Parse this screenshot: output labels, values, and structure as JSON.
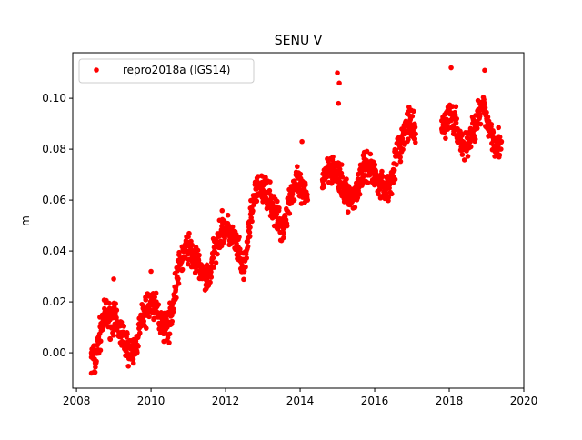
{
  "chart_data": {
    "type": "scatter",
    "title": "SENU V",
    "xlabel": "",
    "ylabel": "m",
    "xlim": [
      2007.9,
      2020.0
    ],
    "ylim": [
      -0.0139,
      0.1179
    ],
    "xticks": [
      2008,
      2010,
      2012,
      2014,
      2016,
      2018,
      2020
    ],
    "xtick_labels": [
      "2008",
      "2010",
      "2012",
      "2014",
      "2016",
      "2018",
      "2020"
    ],
    "yticks": [
      0.0,
      0.02,
      0.04,
      0.06,
      0.08,
      0.1
    ],
    "ytick_labels": [
      "0.00",
      "0.02",
      "0.04",
      "0.06",
      "0.08",
      "0.10"
    ],
    "grid": false,
    "legend": {
      "placement": "top-left",
      "entries": [
        "repro2018a (IGS14)"
      ]
    },
    "series": [
      {
        "name": "repro2018a (IGS14)",
        "color": "#ff0000",
        "marker": "circle",
        "approx_scatter_spread": 0.006,
        "points": [
          [
            2008.4,
            0.0
          ],
          [
            2008.5,
            -0.004
          ],
          [
            2008.6,
            0.005
          ],
          [
            2008.7,
            0.012
          ],
          [
            2008.8,
            0.015
          ],
          [
            2008.9,
            0.013
          ],
          [
            2009.0,
            0.014
          ],
          [
            2009.1,
            0.01
          ],
          [
            2009.2,
            0.008
          ],
          [
            2009.3,
            0.004
          ],
          [
            2009.4,
            0.002
          ],
          [
            2009.5,
            -0.001
          ],
          [
            2009.6,
            0.003
          ],
          [
            2009.7,
            0.01
          ],
          [
            2009.8,
            0.015
          ],
          [
            2009.9,
            0.017
          ],
          [
            2010.0,
            0.02
          ],
          [
            2010.1,
            0.018
          ],
          [
            2010.2,
            0.014
          ],
          [
            2010.3,
            0.012
          ],
          [
            2010.4,
            0.01
          ],
          [
            2010.5,
            0.012
          ],
          [
            2010.6,
            0.02
          ],
          [
            2010.7,
            0.03
          ],
          [
            2010.8,
            0.036
          ],
          [
            2010.9,
            0.04
          ],
          [
            2011.0,
            0.042
          ],
          [
            2011.1,
            0.038
          ],
          [
            2011.2,
            0.036
          ],
          [
            2011.3,
            0.034
          ],
          [
            2011.4,
            0.03
          ],
          [
            2011.5,
            0.029
          ],
          [
            2011.6,
            0.032
          ],
          [
            2011.7,
            0.04
          ],
          [
            2011.8,
            0.046
          ],
          [
            2011.9,
            0.048
          ],
          [
            2012.0,
            0.049
          ],
          [
            2012.1,
            0.047
          ],
          [
            2012.2,
            0.045
          ],
          [
            2012.3,
            0.042
          ],
          [
            2012.4,
            0.036
          ],
          [
            2012.5,
            0.032
          ],
          [
            2012.6,
            0.045
          ],
          [
            2012.7,
            0.057
          ],
          [
            2012.8,
            0.062
          ],
          [
            2012.9,
            0.065
          ],
          [
            2013.0,
            0.064
          ],
          [
            2013.1,
            0.063
          ],
          [
            2013.2,
            0.06
          ],
          [
            2013.3,
            0.056
          ],
          [
            2013.4,
            0.052
          ],
          [
            2013.5,
            0.05
          ],
          [
            2013.6,
            0.052
          ],
          [
            2013.7,
            0.06
          ],
          [
            2013.8,
            0.064
          ],
          [
            2013.9,
            0.066
          ],
          [
            2014.0,
            0.064
          ],
          [
            2014.1,
            0.062
          ],
          [
            2014.2,
            0.06
          ],
          [
            2014.6,
            0.068
          ],
          [
            2014.7,
            0.072
          ],
          [
            2014.8,
            0.074
          ],
          [
            2014.9,
            0.072
          ],
          [
            2015.0,
            0.07
          ],
          [
            2015.1,
            0.066
          ],
          [
            2015.2,
            0.064
          ],
          [
            2015.3,
            0.062
          ],
          [
            2015.4,
            0.06
          ],
          [
            2015.5,
            0.064
          ],
          [
            2015.6,
            0.068
          ],
          [
            2015.7,
            0.072
          ],
          [
            2015.8,
            0.074
          ],
          [
            2015.9,
            0.072
          ],
          [
            2016.0,
            0.07
          ],
          [
            2016.1,
            0.068
          ],
          [
            2016.2,
            0.066
          ],
          [
            2016.3,
            0.064
          ],
          [
            2016.4,
            0.066
          ],
          [
            2016.5,
            0.072
          ],
          [
            2016.6,
            0.078
          ],
          [
            2016.7,
            0.082
          ],
          [
            2016.8,
            0.086
          ],
          [
            2016.9,
            0.09
          ],
          [
            2017.0,
            0.088
          ],
          [
            2017.1,
            0.086
          ],
          [
            2017.8,
            0.088
          ],
          [
            2017.9,
            0.09
          ],
          [
            2018.0,
            0.094
          ],
          [
            2018.1,
            0.092
          ],
          [
            2018.2,
            0.088
          ],
          [
            2018.3,
            0.084
          ],
          [
            2018.4,
            0.08
          ],
          [
            2018.5,
            0.082
          ],
          [
            2018.6,
            0.086
          ],
          [
            2018.7,
            0.09
          ],
          [
            2018.8,
            0.094
          ],
          [
            2018.9,
            0.096
          ],
          [
            2019.0,
            0.092
          ],
          [
            2019.1,
            0.088
          ],
          [
            2019.2,
            0.084
          ],
          [
            2019.3,
            0.082
          ],
          [
            2019.4,
            0.083
          ]
        ],
        "outliers": [
          [
            2015.0,
            0.11
          ],
          [
            2015.05,
            0.106
          ],
          [
            2015.03,
            0.098
          ],
          [
            2018.05,
            0.112
          ],
          [
            2018.95,
            0.111
          ],
          [
            2014.05,
            0.083
          ],
          [
            2010.0,
            0.032
          ],
          [
            2009.0,
            0.029
          ],
          [
            2008.4,
            -0.008
          ]
        ]
      }
    ]
  }
}
